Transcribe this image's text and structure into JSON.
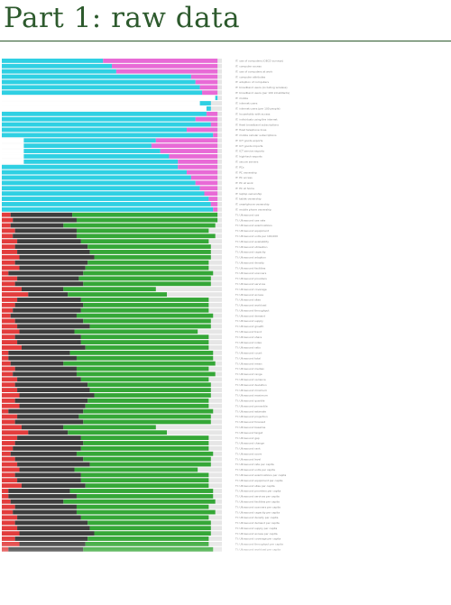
{
  "page": {
    "title": "Part 1: raw data"
  },
  "chart_data": {
    "type": "bar",
    "orientation": "horizontal",
    "stacked": true,
    "title": "Part 1: raw data",
    "xlim": [
      0,
      1
    ],
    "grid": false,
    "legend": "none",
    "colors": {
      "track": "#e6e6e6",
      "cyan": "#2fd0e3",
      "magenta": "#e86ad6",
      "red": "#e23c3c",
      "dark": "#3d3d3d",
      "green": "#35a737",
      "white": "#ffffff"
    },
    "group_a": {
      "series": [
        "white",
        "cyan",
        "magenta"
      ],
      "rows": [
        {
          "label": "IT: use of computers (OECD surveys)",
          "values": [
            0.0,
            0.46,
            0.52
          ]
        },
        {
          "label": "IT: computer access",
          "values": [
            0.0,
            0.5,
            0.48
          ]
        },
        {
          "label": "IT: use of computers at work",
          "values": [
            0.0,
            0.52,
            0.46
          ]
        },
        {
          "label": "IT: computer attributes",
          "values": [
            0.0,
            0.86,
            0.12
          ]
        },
        {
          "label": "IT: adoption of computers",
          "values": [
            0.0,
            0.88,
            0.1
          ]
        },
        {
          "label": "IT: broadband users (including wireless)",
          "values": [
            0.0,
            0.9,
            0.08
          ]
        },
        {
          "label": "IT: broadband users (per 100 inhabitants)",
          "values": [
            0.0,
            0.91,
            0.07
          ]
        },
        {
          "label": "IT: mobile",
          "values": [
            0.97,
            0.01,
            0.0
          ]
        },
        {
          "label": "IT: internet users",
          "values": [
            0.9,
            0.05,
            0.0
          ]
        },
        {
          "label": "IT: internet users (per 100 people)",
          "values": [
            0.93,
            0.02,
            0.0
          ]
        },
        {
          "label": "IT: households with access",
          "values": [
            0.0,
            0.93,
            0.05
          ]
        },
        {
          "label": "IT: individuals using the internet",
          "values": [
            0.0,
            0.88,
            0.1
          ]
        },
        {
          "label": "IT: fixed broadband subscriptions",
          "values": [
            0.0,
            0.95,
            0.03
          ]
        },
        {
          "label": "IT: fixed telephone lines",
          "values": [
            0.0,
            0.84,
            0.14
          ]
        },
        {
          "label": "IT: mobile cellular subscriptions",
          "values": [
            0.0,
            0.96,
            0.02
          ]
        },
        {
          "label": "IT: ICT goods exports",
          "values": [
            0.1,
            0.6,
            0.28
          ]
        },
        {
          "label": "IT: ICT goods imports",
          "values": [
            0.1,
            0.58,
            0.3
          ]
        },
        {
          "label": "IT: ICT service exports",
          "values": [
            0.1,
            0.62,
            0.26
          ]
        },
        {
          "label": "IT: high-tech exports",
          "values": [
            0.1,
            0.66,
            0.22
          ]
        },
        {
          "label": "IT: secure servers",
          "values": [
            0.1,
            0.7,
            0.18
          ]
        },
        {
          "label": "IT: PCs",
          "values": [
            0.0,
            0.8,
            0.18
          ]
        },
        {
          "label": "IT: PC ownership",
          "values": [
            0.0,
            0.84,
            0.14
          ]
        },
        {
          "label": "IT: PC access",
          "values": [
            0.0,
            0.86,
            0.12
          ]
        },
        {
          "label": "IT: PC at work",
          "values": [
            0.0,
            0.88,
            0.1
          ]
        },
        {
          "label": "IT: PC at home",
          "values": [
            0.0,
            0.9,
            0.08
          ]
        },
        {
          "label": "IT: laptop ownership",
          "values": [
            0.0,
            0.92,
            0.06
          ]
        },
        {
          "label": "IT: tablet ownership",
          "values": [
            0.0,
            0.94,
            0.04
          ]
        },
        {
          "label": "IT: smartphone ownership",
          "values": [
            0.0,
            0.95,
            0.03
          ]
        },
        {
          "label": "IT: mobile phone ownership",
          "values": [
            0.0,
            0.96,
            0.02
          ]
        }
      ]
    },
    "group_b": {
      "series": [
        "red",
        "dark",
        "green"
      ],
      "rows": [
        {
          "label": "TI: Ultrasound use",
          "values": [
            0.04,
            0.28,
            0.66
          ]
        },
        {
          "label": "TI: Ultrasound use rate",
          "values": [
            0.05,
            0.29,
            0.64
          ]
        },
        {
          "label": "TI: Ultrasound examinations",
          "values": [
            0.04,
            0.24,
            0.69
          ]
        },
        {
          "label": "TI: Ultrasound equipment",
          "values": [
            0.06,
            0.28,
            0.6
          ]
        },
        {
          "label": "TI: Ultrasound units per 100,000",
          "values": [
            0.05,
            0.29,
            0.63
          ]
        },
        {
          "label": "TI: Ultrasound availability",
          "values": [
            0.07,
            0.29,
            0.58
          ]
        },
        {
          "label": "TI: Ultrasound utilisation",
          "values": [
            0.06,
            0.33,
            0.56
          ]
        },
        {
          "label": "TI: Ultrasound capacity",
          "values": [
            0.07,
            0.33,
            0.55
          ]
        },
        {
          "label": "TI: Ultrasound adoption",
          "values": [
            0.08,
            0.34,
            0.53
          ]
        },
        {
          "label": "TI: Ultrasound density",
          "values": [
            0.06,
            0.33,
            0.55
          ]
        },
        {
          "label": "TI: Ultrasound facilities",
          "values": [
            0.08,
            0.3,
            0.56
          ]
        },
        {
          "label": "TI: Ultrasound scanners",
          "values": [
            0.03,
            0.34,
            0.59
          ]
        },
        {
          "label": "TI: Ultrasound providers",
          "values": [
            0.07,
            0.28,
            0.6
          ]
        },
        {
          "label": "TI: Ultrasound services",
          "values": [
            0.06,
            0.31,
            0.58
          ]
        },
        {
          "label": "TI: Ultrasound coverage",
          "values": [
            0.09,
            0.19,
            0.42
          ]
        },
        {
          "label": "TI: Ultrasound access",
          "values": [
            0.12,
            0.18,
            0.45
          ]
        },
        {
          "label": "TI: Ultrasound sites",
          "values": [
            0.07,
            0.29,
            0.58
          ]
        },
        {
          "label": "TI: Ultrasound workload",
          "values": [
            0.06,
            0.31,
            0.57
          ]
        },
        {
          "label": "TI: Ultrasound throughput",
          "values": [
            0.05,
            0.31,
            0.58
          ]
        },
        {
          "label": "TI: Ultrasound demand",
          "values": [
            0.04,
            0.3,
            0.62
          ]
        },
        {
          "label": "TI: Ultrasound supply",
          "values": [
            0.06,
            0.31,
            0.58
          ]
        },
        {
          "label": "TI: Ultrasound growth",
          "values": [
            0.07,
            0.33,
            0.55
          ]
        },
        {
          "label": "TI: Ultrasound trend",
          "values": [
            0.08,
            0.25,
            0.56
          ]
        },
        {
          "label": "TI: Ultrasound share",
          "values": [
            0.06,
            0.3,
            0.58
          ]
        },
        {
          "label": "TI: Ultrasound index",
          "values": [
            0.07,
            0.29,
            0.58
          ]
        },
        {
          "label": "TI: Ultrasound ratio",
          "values": [
            0.09,
            0.29,
            0.56
          ]
        },
        {
          "label": "TI: Ultrasound count",
          "values": [
            0.03,
            0.28,
            0.65
          ]
        },
        {
          "label": "TI: Ultrasound total",
          "values": [
            0.03,
            0.31,
            0.62
          ]
        },
        {
          "label": "TI: Ultrasound mean",
          "values": [
            0.04,
            0.24,
            0.69
          ]
        },
        {
          "label": "TI: Ultrasound median",
          "values": [
            0.06,
            0.28,
            0.6
          ]
        },
        {
          "label": "TI: Ultrasound range",
          "values": [
            0.05,
            0.29,
            0.63
          ]
        },
        {
          "label": "TI: Ultrasound variance",
          "values": [
            0.07,
            0.29,
            0.58
          ]
        },
        {
          "label": "TI: Ultrasound deviation",
          "values": [
            0.06,
            0.33,
            0.56
          ]
        },
        {
          "label": "TI: Ultrasound minimum",
          "values": [
            0.07,
            0.33,
            0.55
          ]
        },
        {
          "label": "TI: Ultrasound maximum",
          "values": [
            0.08,
            0.34,
            0.53
          ]
        },
        {
          "label": "TI: Ultrasound quartile",
          "values": [
            0.06,
            0.33,
            0.55
          ]
        },
        {
          "label": "TI: Ultrasound percentile",
          "values": [
            0.08,
            0.3,
            0.56
          ]
        },
        {
          "label": "TI: Ultrasound estimate",
          "values": [
            0.03,
            0.34,
            0.59
          ]
        },
        {
          "label": "TI: Ultrasound projection",
          "values": [
            0.07,
            0.28,
            0.6
          ]
        },
        {
          "label": "TI: Ultrasound forecast",
          "values": [
            0.06,
            0.31,
            0.58
          ]
        },
        {
          "label": "TI: Ultrasound baseline",
          "values": [
            0.09,
            0.19,
            0.42
          ]
        },
        {
          "label": "TI: Ultrasound target",
          "values": [
            0.12,
            0.18,
            0.45
          ]
        },
        {
          "label": "TI: Ultrasound gap",
          "values": [
            0.07,
            0.29,
            0.58
          ]
        },
        {
          "label": "TI: Ultrasound change",
          "values": [
            0.06,
            0.31,
            0.57
          ]
        },
        {
          "label": "TI: Ultrasound rank",
          "values": [
            0.05,
            0.31,
            0.58
          ]
        },
        {
          "label": "TI: Ultrasound score",
          "values": [
            0.04,
            0.3,
            0.62
          ]
        },
        {
          "label": "TI: Ultrasound level",
          "values": [
            0.06,
            0.31,
            0.58
          ]
        },
        {
          "label": "TI: Ultrasound rate per capita",
          "values": [
            0.07,
            0.33,
            0.55
          ]
        },
        {
          "label": "TI: Ultrasound units per capita",
          "values": [
            0.08,
            0.25,
            0.56
          ]
        },
        {
          "label": "TI: Ultrasound examinations per capita",
          "values": [
            0.06,
            0.3,
            0.58
          ]
        },
        {
          "label": "TI: Ultrasound equipment per capita",
          "values": [
            0.07,
            0.29,
            0.58
          ]
        },
        {
          "label": "TI: Ultrasound sites per capita",
          "values": [
            0.09,
            0.29,
            0.56
          ]
        },
        {
          "label": "TI: Ultrasound providers per capita",
          "values": [
            0.03,
            0.28,
            0.65
          ]
        },
        {
          "label": "TI: Ultrasound services per capita",
          "values": [
            0.03,
            0.31,
            0.62
          ]
        },
        {
          "label": "TI: Ultrasound facilities per capita",
          "values": [
            0.04,
            0.24,
            0.69
          ]
        },
        {
          "label": "TI: Ultrasound scanners per capita",
          "values": [
            0.06,
            0.28,
            0.6
          ]
        },
        {
          "label": "TI: Ultrasound capacity per capita",
          "values": [
            0.05,
            0.29,
            0.63
          ]
        },
        {
          "label": "TI: Ultrasound density per capita",
          "values": [
            0.07,
            0.29,
            0.58
          ]
        },
        {
          "label": "TI: Ultrasound demand per capita",
          "values": [
            0.06,
            0.33,
            0.56
          ]
        },
        {
          "label": "TI: Ultrasound supply per capita",
          "values": [
            0.07,
            0.33,
            0.55
          ]
        },
        {
          "label": "TI: Ultrasound access per capita",
          "values": [
            0.08,
            0.34,
            0.53
          ]
        },
        {
          "label": "TI: Ultrasound coverage per capita",
          "values": [
            0.06,
            0.33,
            0.55
          ]
        },
        {
          "label": "TI: Ultrasound throughput per capita",
          "values": [
            0.08,
            0.3,
            0.56
          ]
        },
        {
          "label": "TI: Ultrasound workload per capita",
          "values": [
            0.03,
            0.34,
            0.59
          ]
        }
      ]
    }
  }
}
